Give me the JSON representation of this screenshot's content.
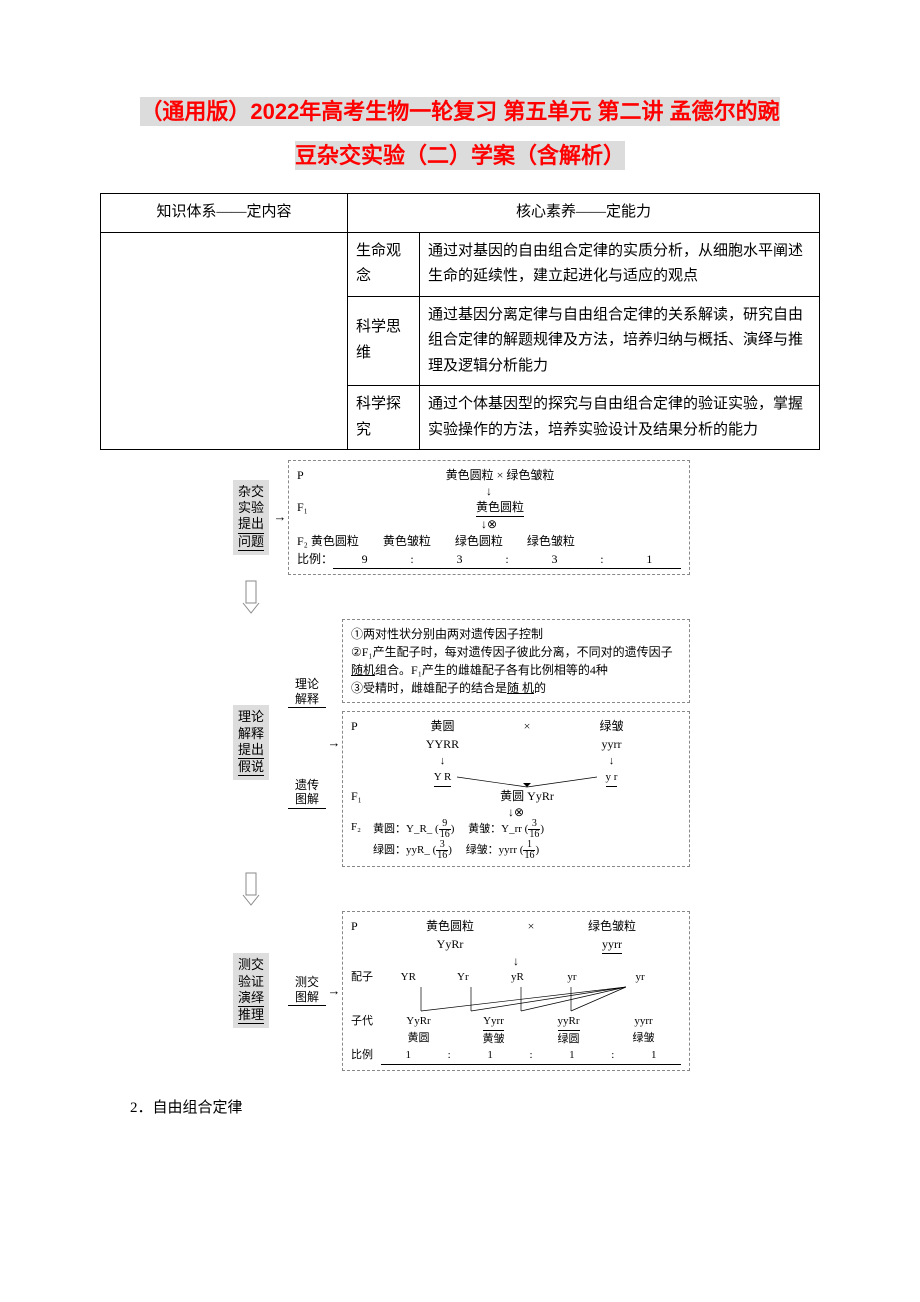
{
  "title_line1": "（通用版）2022年高考生物一轮复习 第五单元 第二讲 孟德尔的豌",
  "title_line2": "豆杂交实验（二）学案（含解析）",
  "table": {
    "header_left": "知识体系——定内容",
    "header_right": "核心素养——定能力",
    "rows": [
      {
        "cat": "生命观念",
        "desc": "通过对基因的自由组合定律的实质分析，从细胞水平阐述生命的延续性，建立起进化与适应的观点"
      },
      {
        "cat": "科学思维",
        "desc": "通过基因分离定律与自由组合定律的关系解读，研究自由组合定律的解题规律及方法，培养归纳与概括、演绎与推理及逻辑分析能力"
      },
      {
        "cat": "科学探究",
        "desc": "通过个体基因型的探究与自由组合定律的验证实验，掌握实验操作的方法，培养实验设计及结果分析的能力"
      }
    ]
  },
  "diagram": {
    "stage1": {
      "l1": "杂交",
      "l2": "实验",
      "l3": "提出",
      "l4": "问题"
    },
    "stage2": {
      "l1": "理论",
      "l2": "解释",
      "l3": "提出",
      "l4": "假说"
    },
    "stage3": {
      "l1": "测交",
      "l2": "验证",
      "l3": "演绎",
      "l4": "推理"
    },
    "cross1": {
      "p_label": "P",
      "p_cross": "黄色圆粒 × 绿色皱粒",
      "f1_label": "F₁",
      "f1_pheno": "黄色圆粒",
      "self_sym": "↓⊗",
      "f2_label": "F₂ 黄色圆粒　　黄色皱粒　　绿色圆粒　　绿色皱粒",
      "ratio_label": "比例：",
      "ratio_vals": [
        "9",
        ":",
        "3",
        ":",
        "3",
        ":",
        "1"
      ]
    },
    "theory_label": "理论解释",
    "theory_lines": [
      "①两对性状分别由两对遗传因子控制",
      "②F₁产生配子时，每对遗传因子彼此分离，不同对的遗传因子<u>随机</u>组合。F₁产生的雌雄配子各有比例相等的4种",
      "③受精时，雌雄配子的结合是<u>随 机</u>的"
    ],
    "genetic_label": "遗传图解",
    "genetic": {
      "p_label": "P",
      "p1_pheno": "黄圆",
      "p1_geno": "YYRR",
      "p2_pheno": "绿皱",
      "p2_geno": "yyrr",
      "g1": "Y R",
      "g2": "y r",
      "f1_label": "F₁",
      "f1_text": "黄圆 YyRr",
      "f2_label": "F₂",
      "f2_items": [
        {
          "t": "黄圆：Y_R_",
          "f": "9/16"
        },
        {
          "t": "黄皱：Y_rr",
          "f": "3/16"
        },
        {
          "t": "绿圆：yyR_",
          "f": "3/16"
        },
        {
          "t": "绿皱：yyrr",
          "f": "1/16"
        }
      ]
    },
    "testcross_label": "测交图解",
    "testcross": {
      "p_label": "P",
      "p1_pheno": "黄色圆粒",
      "p1_geno": "YyRr",
      "p2_pheno": "绿色皱粒",
      "p2_geno": "yyrr",
      "gamete_label": "配子",
      "g_left": [
        "YR",
        "Yr",
        "yR",
        "yr"
      ],
      "g_right": "yr",
      "off_label": "子代",
      "offspring": [
        {
          "g": "YyRr",
          "p": "黄圆"
        },
        {
          "g": "Yyrr",
          "p": "黄皱"
        },
        {
          "g": "yyRr",
          "p": "绿圆"
        },
        {
          "g": "yyrr",
          "p": "绿皱"
        }
      ],
      "ratio_label": "比例",
      "ratio_vals": [
        "1",
        ":",
        "1",
        ":",
        "1",
        ":",
        "1"
      ]
    }
  },
  "section2": "2．自由组合定律",
  "colors": {
    "title_bg": "#dcdcdc",
    "title_fg": "#ff0000",
    "stage_bg": "#dddddd",
    "border": "#000000",
    "dash": "#888888"
  }
}
